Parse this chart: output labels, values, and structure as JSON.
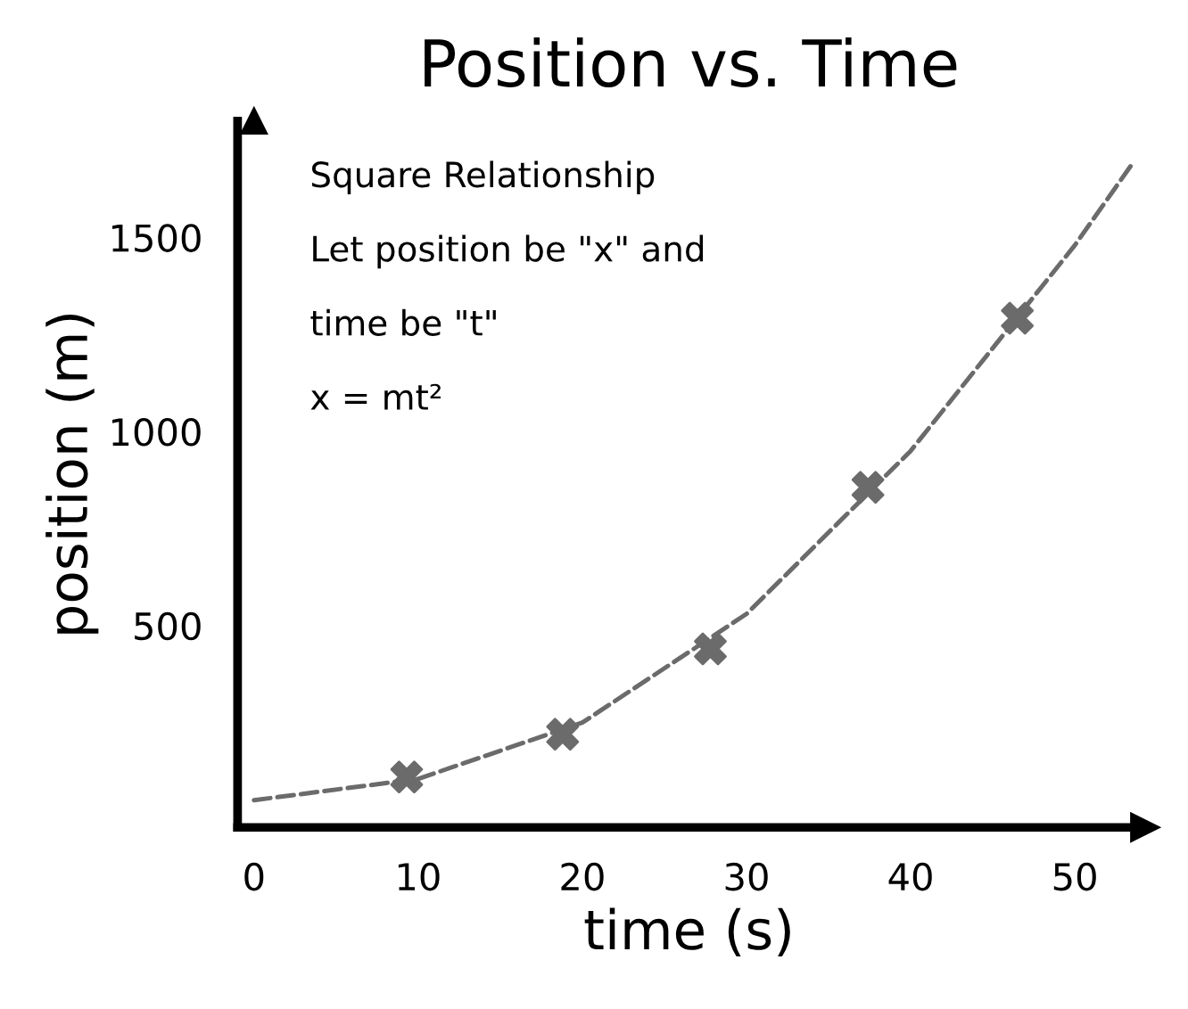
{
  "chart_data": {
    "type": "scatter",
    "title": "Position vs. Time",
    "xlabel": "time (s)",
    "ylabel": "position (m)",
    "xlim": [
      -1,
      54
    ],
    "ylim": [
      -20,
      1800
    ],
    "xticks": [
      0,
      10,
      20,
      30,
      40,
      50
    ],
    "yticks": [
      500,
      1000,
      1500
    ],
    "grid": false,
    "annotations": [
      "Square Relationship",
      "Let position be \"x\" and",
      "time be \"t\"",
      "x = mt²"
    ],
    "series": [
      {
        "color": "#6b6b6b",
        "marker": "cross",
        "x": [
          9.3,
          18.8,
          27.8,
          37.4,
          46.5
        ],
        "values": [
          110,
          220,
          440,
          856,
          1292
        ]
      },
      {
        "type": "line",
        "color": "#6b6b6b",
        "line_style": "dashed",
        "marker": "none",
        "x": [
          0,
          10,
          20,
          30,
          40,
          50,
          53.5
        ],
        "values": [
          50,
          105,
          250,
          530,
          950,
          1480,
          1690
        ]
      }
    ]
  }
}
